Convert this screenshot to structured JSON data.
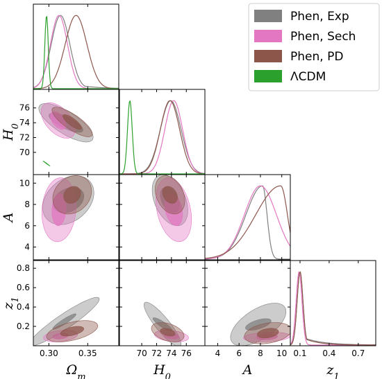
{
  "chart_data": {
    "type": "corner",
    "title": "",
    "parameters": [
      {
        "key": "om",
        "label": "Ω",
        "sub": "m",
        "range": [
          0.28,
          0.39
        ],
        "ticks": [
          0.3,
          0.35
        ],
        "tick_labels": [
          "0.30",
          "0.35"
        ]
      },
      {
        "key": "h0",
        "label": "H",
        "sub": "0",
        "range": [
          67.0,
          78.5
        ],
        "ticks": [
          70,
          72,
          74,
          76
        ],
        "tick_labels": [
          "70",
          "72",
          "74",
          "76"
        ]
      },
      {
        "key": "A",
        "label": "A",
        "sub": "",
        "range": [
          2.8,
          10.8
        ],
        "ticks": [
          4,
          6,
          8,
          10
        ],
        "tick_labels": [
          "4",
          "6",
          "8",
          "10"
        ]
      },
      {
        "key": "z1",
        "label": "z",
        "sub": "1",
        "range": [
          0.0,
          0.88
        ],
        "ticks": [
          0.1,
          0.4,
          0.7
        ],
        "tick_labels": [
          "0.1",
          "0.4",
          "0.7"
        ],
        "y_ticks": [
          0.2,
          0.4,
          0.6,
          0.8
        ],
        "y_tick_labels": [
          "0.2",
          "0.4",
          "0.6",
          "0.8"
        ]
      }
    ],
    "legend": {
      "position": "top-right",
      "entries": [
        {
          "name": "Phen, Exp",
          "color": "#808080"
        },
        {
          "name": "Phen, Sech",
          "color": "#e377c2"
        },
        {
          "name": "Phen, PD",
          "color": "#8c564b"
        },
        {
          "name": "ΛCDM",
          "color": "#2ca02c"
        }
      ]
    },
    "series": [
      {
        "name": "Phen, Exp",
        "color": "#808080",
        "marginals": {
          "om": {
            "peak": 0.315,
            "sigma": 0.012,
            "tail": 0.025
          },
          "h0": {
            "peak": 73.9,
            "sigma": 1.4
          },
          "A": {
            "peak": 8.2,
            "sigma": 1.2,
            "skew": "left"
          },
          "z1": {
            "peak": 0.1,
            "sigma": 0.03,
            "tail": 0.2
          }
        },
        "contours": {
          "om-h0": {
            "center": [
              0.322,
              74.0
            ],
            "rx68": 0.022,
            "ry68": 1.3,
            "rx95": 0.035,
            "ry95": 2.6,
            "rho": -0.75
          },
          "om-A": {
            "center": [
              0.325,
              8.4
            ],
            "rx68": 0.02,
            "ry68": 1.2,
            "rx95": 0.033,
            "ry95": 2.3,
            "rho": 0.3
          },
          "h0-A": {
            "center": [
              73.8,
              8.4
            ],
            "rx68": 1.3,
            "ry68": 1.2,
            "rx95": 2.4,
            "ry95": 2.4,
            "rho": -0.4
          },
          "om-z1": {
            "center": [
              0.32,
              0.25
            ],
            "rx68": 0.015,
            "ry68": 0.08,
            "rx95": 0.045,
            "ry95": 0.25,
            "rho": 0.93
          },
          "h0-z1": {
            "center": [
              72.8,
              0.22
            ],
            "rx68": 1.3,
            "ry68": 0.07,
            "rx95": 2.5,
            "ry95": 0.23,
            "rho": -0.88
          },
          "A-z1": {
            "center": [
              7.8,
              0.22
            ],
            "rx68": 1.2,
            "ry68": 0.06,
            "rx95": 2.6,
            "ry95": 0.22,
            "rho": 0.6
          }
        }
      },
      {
        "name": "Phen, Sech",
        "color": "#e377c2",
        "marginals": {
          "om": {
            "peak": 0.313,
            "sigma": 0.011
          },
          "h0": {
            "peak": 74.3,
            "sigma": 1.2
          },
          "A": {
            "peak": 8.0,
            "sigma": 1.5
          },
          "z1": {
            "peak": 0.09,
            "sigma": 0.03
          }
        },
        "contours": {
          "om-h0": {
            "center": [
              0.312,
              74.3
            ],
            "rx68": 0.01,
            "ry68": 1.2,
            "rx95": 0.022,
            "ry95": 2.4,
            "rho": -0.5
          },
          "om-A": {
            "center": [
              0.313,
              7.5
            ],
            "rx68": 0.009,
            "ry68": 1.5,
            "rx95": 0.022,
            "ry95": 3.0,
            "rho": 0.1
          },
          "h0-A": {
            "center": [
              74.3,
              7.5
            ],
            "rx68": 1.2,
            "ry68": 1.5,
            "rx95": 2.4,
            "ry95": 3.0,
            "rho": -0.3
          },
          "om-z1": {
            "center": [
              0.315,
              0.1
            ],
            "rx68": 0.01,
            "ry68": 0.03,
            "rx95": 0.022,
            "ry95": 0.06,
            "rho": 0.3
          },
          "h0-z1": {
            "center": [
              74.0,
              0.1
            ],
            "rx68": 1.0,
            "ry68": 0.03,
            "rx95": 2.3,
            "ry95": 0.06,
            "rho": -0.3
          },
          "A-z1": {
            "center": [
              8.6,
              0.09
            ],
            "rx68": 1.0,
            "ry68": 0.03,
            "rx95": 2.2,
            "ry95": 0.05,
            "rho": 0.2
          }
        }
      },
      {
        "name": "Phen, PD",
        "color": "#8c564b",
        "marginals": {
          "om": {
            "peak": 0.335,
            "sigma": 0.014
          },
          "h0": {
            "peak": 73.8,
            "sigma": 1.3
          },
          "A": {
            "peak": 9.9,
            "sigma": 1.8,
            "skew": "left"
          },
          "z1": {
            "peak": 0.1,
            "sigma": 0.03,
            "tail": 0.15
          }
        },
        "contours": {
          "om-h0": {
            "center": [
              0.33,
              74.1
            ],
            "rx68": 0.012,
            "ry68": 1.0,
            "rx95": 0.026,
            "ry95": 2.0,
            "rho": -0.8
          },
          "om-A": {
            "center": [
              0.33,
              8.9
            ],
            "rx68": 0.011,
            "ry68": 0.8,
            "rx95": 0.025,
            "ry95": 1.8,
            "rho": 0.2
          },
          "h0-A": {
            "center": [
              73.8,
              8.9
            ],
            "rx68": 1.0,
            "ry68": 0.8,
            "rx95": 2.0,
            "ry95": 1.8,
            "rho": -0.3
          },
          "om-z1": {
            "center": [
              0.33,
              0.15
            ],
            "rx68": 0.015,
            "ry68": 0.05,
            "rx95": 0.033,
            "ry95": 0.11,
            "rho": 0.5
          },
          "h0-z1": {
            "center": [
              73.5,
              0.14
            ],
            "rx68": 1.0,
            "ry68": 0.04,
            "rx95": 2.2,
            "ry95": 0.1,
            "rho": -0.4
          },
          "A-z1": {
            "center": [
              8.7,
              0.13
            ],
            "rx68": 1.0,
            "ry68": 0.05,
            "rx95": 2.2,
            "ry95": 0.11,
            "rho": 0.3
          }
        }
      },
      {
        "name": "ΛCDM",
        "color": "#2ca02c",
        "marginals": {
          "om": {
            "peak": 0.297,
            "sigma": 0.0022
          },
          "h0": {
            "peak": 68.4,
            "sigma": 0.32
          }
        },
        "contours": {
          "om-h0": {
            "center": [
              0.297,
              68.5
            ],
            "rx68": 0.002,
            "ry68": 0.15,
            "rx95": 0.0045,
            "ry95": 0.35,
            "rho": -0.99
          }
        }
      }
    ]
  }
}
